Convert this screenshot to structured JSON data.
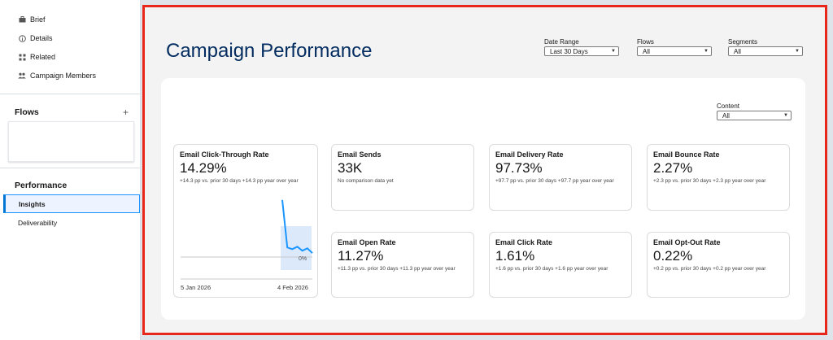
{
  "sidebar": {
    "nav": [
      {
        "label": "Brief",
        "icon": "briefcase-icon"
      },
      {
        "label": "Details",
        "icon": "info-icon"
      },
      {
        "label": "Related",
        "icon": "grid-icon"
      },
      {
        "label": "Campaign Members",
        "icon": "people-icon"
      }
    ],
    "flows_title": "Flows",
    "flows_add": "+",
    "performance_title": "Performance",
    "performance_items": [
      "Insights",
      "Deliverability"
    ]
  },
  "header": {
    "title": "Campaign Performance",
    "filters": [
      {
        "label": "Date Range",
        "value": "Last 30 Days"
      },
      {
        "label": "Flows",
        "value": "All"
      },
      {
        "label": "Segments",
        "value": "All"
      }
    ]
  },
  "content_filter": {
    "label": "Content",
    "value": "All"
  },
  "metrics": [
    {
      "title": "Email Click-Through Rate",
      "value": "14.29%",
      "sub": "+14.3 pp vs. prior 30 days +14.3 pp year over year"
    },
    {
      "title": "Email Sends",
      "value": "33K",
      "sub": "No comparison data yet"
    },
    {
      "title": "Email Delivery Rate",
      "value": "97.73%",
      "sub": "+97.7 pp vs. prior 30 days +97.7 pp year over year"
    },
    {
      "title": "Email Bounce Rate",
      "value": "2.27%",
      "sub": "+2.3 pp vs. prior 30 days +2.3 pp year over year"
    },
    {
      "title": "Email Open Rate",
      "value": "11.27%",
      "sub": "+11.3 pp vs. prior 30 days +11.3 pp year over year"
    },
    {
      "title": "Email Click Rate",
      "value": "1.61%",
      "sub": "+1.6 pp vs. prior 30 days +1.6 pp year over year"
    },
    {
      "title": "Email Opt-Out Rate",
      "value": "0.22%",
      "sub": "+0.2 pp vs. prior 30 days +0.2 pp year over year"
    }
  ],
  "chart_data": {
    "type": "line",
    "x_start_label": "5 Jan 2026",
    "x_end_label": "4 Feb 2026",
    "baseline_label": "0%",
    "y_values": [
      72,
      12,
      10,
      13,
      8,
      11,
      5
    ],
    "color": "#1b96ff"
  }
}
